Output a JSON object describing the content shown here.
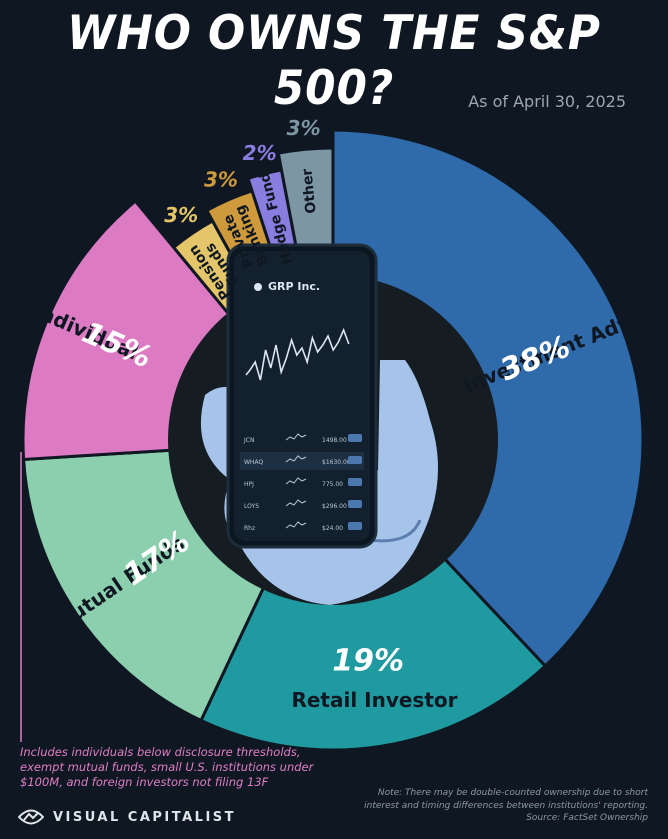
{
  "header": {
    "title": "WHO OWNS THE S&P 500?",
    "subtitle": "As of April 30, 2025"
  },
  "chart_data": {
    "type": "pie",
    "variant": "donut",
    "title": "WHO OWNS THE S&P 500?",
    "subtitle": "As of April 30, 2025",
    "slices": [
      {
        "label": "Investment Advisor",
        "value": 38,
        "value_label": "38%",
        "color": "#2f6aaa"
      },
      {
        "label": "Retail Investor",
        "value": 19,
        "value_label": "19%",
        "color": "#1f9aa0"
      },
      {
        "label": "Mutual Funds",
        "value": 17,
        "value_label": "17%",
        "color": "#8ccfae"
      },
      {
        "label": "Individual",
        "value": 15,
        "value_label": "15%",
        "color": "#dc7ac4"
      },
      {
        "label": "Pension Funds",
        "value": 3,
        "value_label": "3%",
        "color": "#e4c56a"
      },
      {
        "label": "Private Banking",
        "value": 3,
        "value_label": "3%",
        "color": "#cf9a3c"
      },
      {
        "label": "Hedge Funds",
        "value": 2,
        "value_label": "2%",
        "color": "#8a7de0"
      },
      {
        "label": "Other",
        "value": 3,
        "value_label": "3%",
        "color": "#7c96a4"
      }
    ]
  },
  "phone": {
    "company": "GRP Inc.",
    "tickers": [
      "JCN",
      "WHAQ",
      "HPJ",
      "LOYS",
      "Rhz"
    ],
    "prices": [
      "1498.00",
      "$1630.00",
      "775.00",
      "$296.00",
      "$24.00"
    ]
  },
  "footer": {
    "footnote": "Includes individuals below disclosure thresholds, exempt mutual funds, small U.S. institutions under $100M, and foreign investors not filing 13F",
    "note_line1": "Note: There may be double-counted ownership due to short",
    "note_line2": "interest and timing differences between institutions' reporting.",
    "source": "Source: FactSet Ownership",
    "brand": "VISUAL CAPITALIST"
  },
  "colors": {
    "background": "#0f1822",
    "inner_circle": "#151c22",
    "footnote_pink": "#e07dc7"
  }
}
